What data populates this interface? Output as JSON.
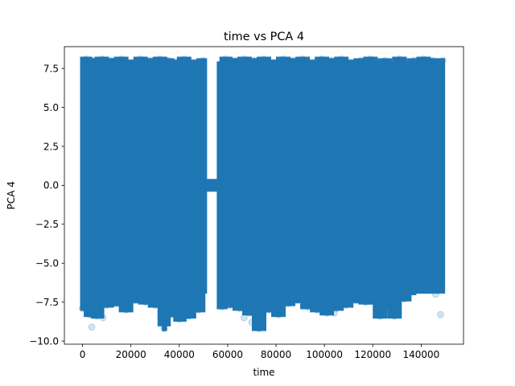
{
  "chart_data": {
    "type": "scatter",
    "title": "time vs PCA 4",
    "xlabel": "time",
    "ylabel": "PCA 4",
    "xlim": [
      -7500,
      157500
    ],
    "ylim": [
      -10.2,
      8.9
    ],
    "xticks": [
      0,
      20000,
      40000,
      60000,
      80000,
      100000,
      120000,
      140000
    ],
    "xtick_labels": [
      "0",
      "20000",
      "40000",
      "60000",
      "80000",
      "100000",
      "120000",
      "140000"
    ],
    "yticks": [
      -10.0,
      -7.5,
      -5.0,
      -2.5,
      0.0,
      2.5,
      5.0,
      7.5
    ],
    "ytick_labels": [
      "−10.0",
      "−7.5",
      "−5.0",
      "−2.5",
      "0.0",
      "2.5",
      "5.0",
      "7.5"
    ],
    "grid": false,
    "legend": "none",
    "marker": "circle",
    "alpha": 0.2,
    "series": [
      {
        "color": "#1f77b4",
        "x": [
          0,
          1500,
          3000,
          4500,
          6000,
          8000,
          10000,
          12000,
          14000,
          16000,
          18000,
          20000,
          22000,
          24000,
          26000,
          28000,
          30000,
          32000,
          34000,
          35500,
          37000,
          38500,
          40000,
          42000,
          44000,
          46000,
          48000,
          49800,
          50500,
          52000,
          53500,
          55000,
          56500,
          57600,
          59000,
          61000,
          63000,
          65000,
          67000,
          69000,
          71000,
          73000,
          75000,
          77000,
          79000,
          81000,
          83000,
          85000,
          87000,
          89000,
          91000,
          93000,
          95000,
          97000,
          99000,
          101000,
          103000,
          105000,
          107000,
          109000,
          111000,
          113000,
          115000,
          117000,
          119000,
          121000,
          123000,
          125000,
          127000,
          129000,
          131000,
          133000,
          135000,
          137000,
          139000,
          141000,
          143000,
          145000,
          147000,
          148900,
          3800,
          33800,
          33900,
          66800,
          70000,
          72500,
          104000,
          128000,
          148000,
          146000,
          8500,
          17000,
          27000,
          41000,
          90500,
          112000,
          131000,
          62000,
          95000,
          138000
        ],
        "y": [
          -7.9,
          8.1,
          -8.3,
          8.0,
          -8.4,
          8.1,
          -7.7,
          8.0,
          -7.6,
          8.1,
          -8.0,
          7.9,
          -7.4,
          8.1,
          -7.5,
          8.0,
          -7.7,
          8.1,
          -8.9,
          8.0,
          -8.3,
          7.9,
          -8.6,
          8.1,
          -8.4,
          7.9,
          -8.0,
          8.0,
          0.0,
          0.0,
          0.0,
          0.0,
          0.0,
          -7.8,
          8.1,
          -7.7,
          8.0,
          -7.9,
          8.1,
          -8.2,
          8.0,
          -9.2,
          8.1,
          -8.0,
          7.9,
          -8.3,
          8.1,
          -7.6,
          8.0,
          -7.4,
          8.1,
          -7.8,
          7.9,
          -8.0,
          8.1,
          -8.2,
          8.0,
          -7.9,
          8.1,
          -7.7,
          7.9,
          -7.4,
          8.0,
          -7.5,
          8.1,
          -7.5,
          -8.4,
          8.0,
          -7.8,
          -8.4,
          8.1,
          -7.3,
          -6.9,
          8.0,
          -6.5,
          8.1,
          -6.4,
          8.0,
          -6.2,
          8.0,
          -9.1,
          -9.2,
          -8.8,
          -8.5,
          -8.8,
          -8.4,
          -8.2,
          -7.7,
          -8.3,
          -7.0,
          -8.5,
          -7.4,
          -7.1,
          -8.0,
          7.6,
          7.4,
          7.9,
          -7.2,
          -7.6,
          7.5
        ]
      }
    ]
  }
}
